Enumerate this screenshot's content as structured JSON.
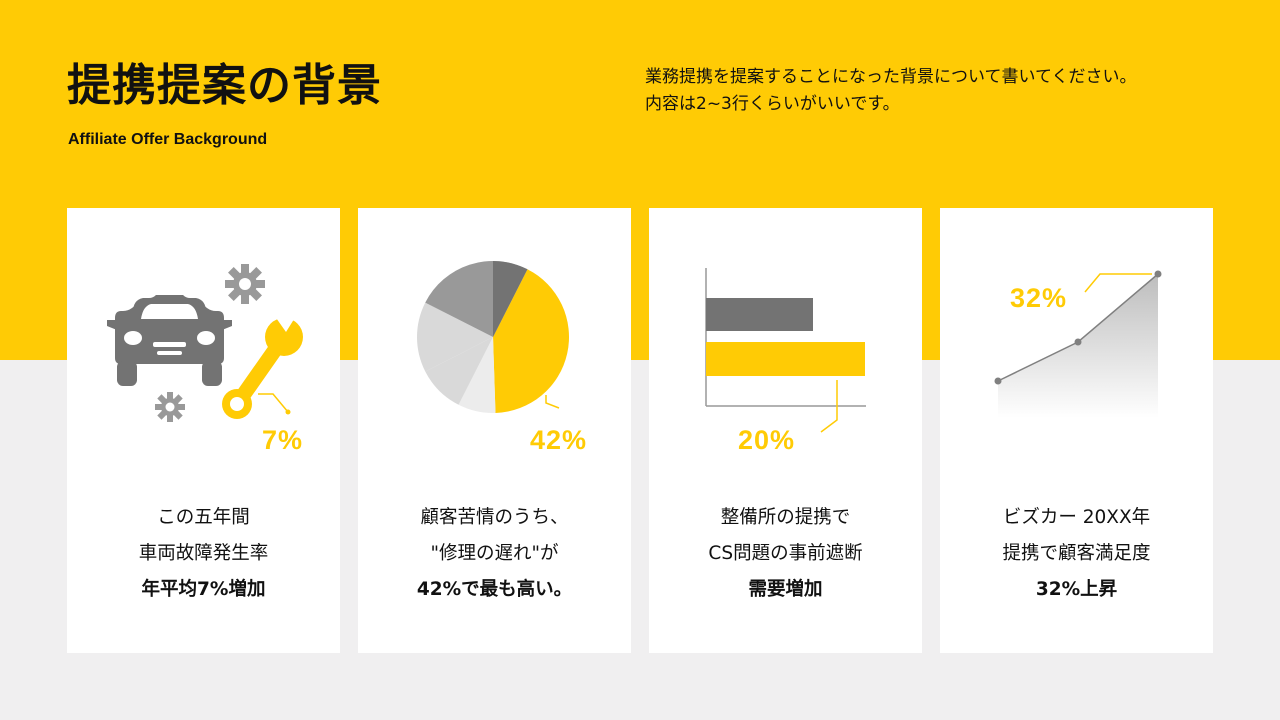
{
  "header": {
    "title": "提携提案の背景",
    "subtitle": "Affiliate Offer Background",
    "description": [
      "業務提携を提案することになった背景について書いてください。",
      "内容は2~3行くらいがいいです。"
    ]
  },
  "cards": [
    {
      "percent": "7%",
      "lines": [
        "この五年間",
        "車両故障発生率",
        "年平均7%増加"
      ],
      "icons": [
        "car-icon",
        "wrench-icon",
        "gear-icon"
      ]
    },
    {
      "percent": "42%",
      "lines": [
        "顧客苦情のうち、",
        "\"修理の遅れ\"が",
        "42%で最も高い。"
      ],
      "chart_data": {
        "type": "pie",
        "values": [
          42,
          8,
          10,
          15,
          25
        ]
      }
    },
    {
      "percent": "20%",
      "lines": [
        "整備所の提携で",
        "CS問題の事前遮断",
        "需要増加"
      ],
      "chart_data": {
        "type": "bar",
        "orientation": "horizontal"
      }
    },
    {
      "percent": "32%",
      "lines": [
        "ビズカー 20XX年",
        "提携で顧客満足度",
        "32%上昇"
      ],
      "chart_data": {
        "type": "area"
      }
    }
  ],
  "colors": {
    "accent": "#ffcb05",
    "dark_gray": "#737373",
    "mid_gray": "#999999",
    "light_gray": "#d9d9d9",
    "pale_gray": "#ececec",
    "background": "#f0eff0"
  }
}
